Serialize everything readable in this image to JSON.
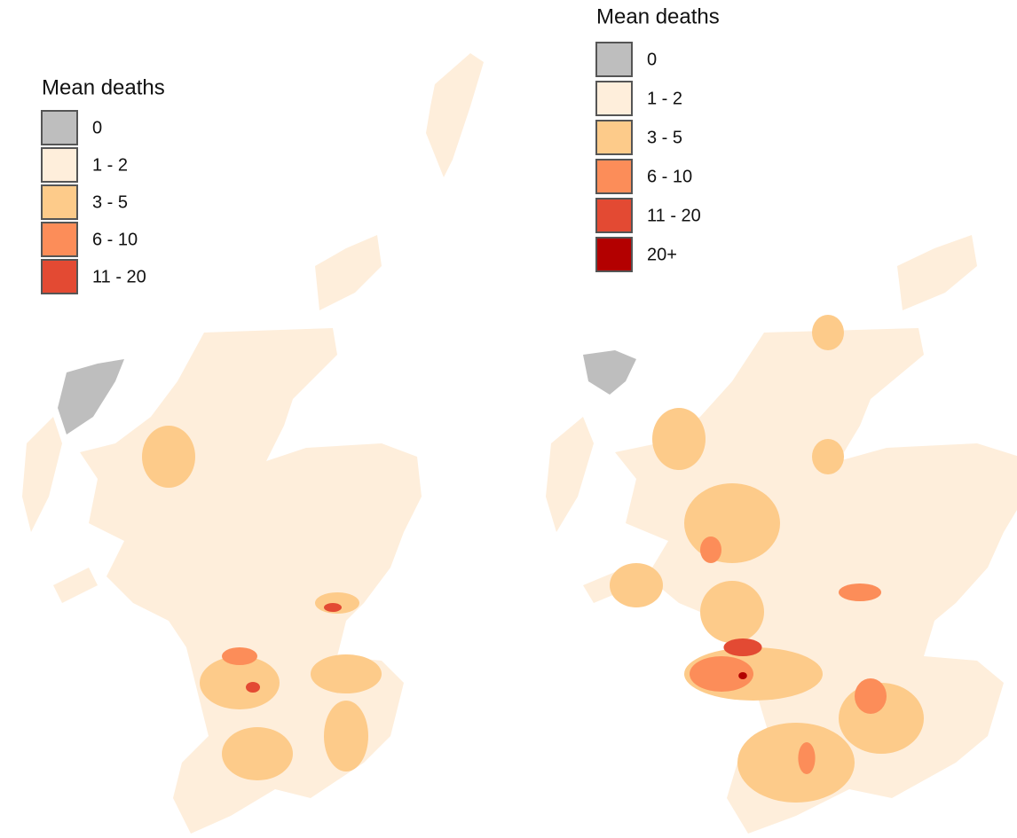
{
  "maps": [
    {
      "legend": {
        "title": "Mean deaths",
        "items": [
          {
            "label": "0",
            "color": "#bebebe"
          },
          {
            "label": "1 - 2",
            "color": "#feeedb"
          },
          {
            "label": "3 - 5",
            "color": "#fdcb8a"
          },
          {
            "label": "6 - 10",
            "color": "#fc8d59"
          },
          {
            "label": "11 - 20",
            "color": "#e34a33"
          }
        ]
      }
    },
    {
      "legend": {
        "title": "Mean deaths",
        "items": [
          {
            "label": "0",
            "color": "#bebebe"
          },
          {
            "label": "1 - 2",
            "color": "#feeedb"
          },
          {
            "label": "3 - 5",
            "color": "#fdcb8a"
          },
          {
            "label": "6 - 10",
            "color": "#fc8d59"
          },
          {
            "label": "11 - 20",
            "color": "#e34a33"
          },
          {
            "label": "20+",
            "color": "#b30000"
          }
        ]
      }
    }
  ]
}
